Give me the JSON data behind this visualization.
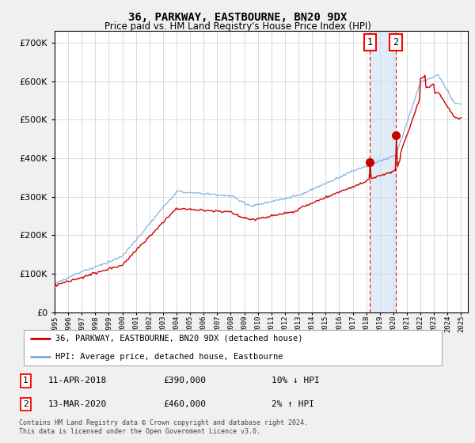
{
  "title": "36, PARKWAY, EASTBOURNE, BN20 9DX",
  "subtitle": "Price paid vs. HM Land Registry's House Price Index (HPI)",
  "ylim": [
    0,
    730000
  ],
  "xlim_start": 1995.0,
  "xlim_end": 2025.5,
  "hpi_color": "#7aabdc",
  "price_color": "#cc0000",
  "annotation1_date": 2018.27,
  "annotation2_date": 2020.19,
  "annotation1_price": 390000,
  "annotation2_price": 460000,
  "legend_label1": "36, PARKWAY, EASTBOURNE, BN20 9DX (detached house)",
  "legend_label2": "HPI: Average price, detached house, Eastbourne",
  "note1_date": "11-APR-2018",
  "note1_price": "£390,000",
  "note1_hpi": "10% ↓ HPI",
  "note2_date": "13-MAR-2020",
  "note2_price": "£460,000",
  "note2_hpi": "2% ↑ HPI",
  "copyright": "Contains HM Land Registry data © Crown copyright and database right 2024.\nThis data is licensed under the Open Government Licence v3.0.",
  "background_color": "#f0f0f0",
  "plot_bg_color": "#ffffff"
}
